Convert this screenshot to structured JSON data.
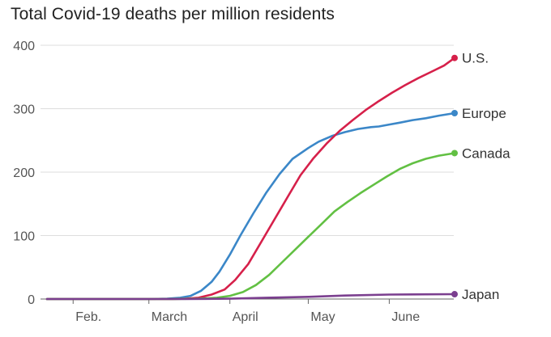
{
  "chart_data": {
    "type": "line",
    "title": "Total Covid-19 deaths per million residents",
    "xlabel": "",
    "ylabel": "",
    "ylim": [
      0,
      400
    ],
    "y_ticks": [
      0,
      100,
      200,
      300,
      400
    ],
    "x_range": [
      "2020-01-22",
      "2020-06-26"
    ],
    "x_ticks": [
      {
        "date": "2020-02-01",
        "label": "Feb."
      },
      {
        "date": "2020-03-01",
        "label": "March"
      },
      {
        "date": "2020-04-01",
        "label": "April"
      },
      {
        "date": "2020-05-01",
        "label": "May"
      },
      {
        "date": "2020-06-01",
        "label": "June"
      }
    ],
    "grid": "horizontal",
    "legend": "end-of-line labels",
    "series": [
      {
        "name": "Europe",
        "color": "#3b87c8",
        "x": [
          "2020-01-22",
          "2020-02-15",
          "2020-03-01",
          "2020-03-08",
          "2020-03-13",
          "2020-03-17",
          "2020-03-21",
          "2020-03-25",
          "2020-03-28",
          "2020-04-01",
          "2020-04-05",
          "2020-04-10",
          "2020-04-15",
          "2020-04-20",
          "2020-04-25",
          "2020-05-01",
          "2020-05-05",
          "2020-05-10",
          "2020-05-15",
          "2020-05-20",
          "2020-05-25",
          "2020-05-28",
          "2020-06-01",
          "2020-06-05",
          "2020-06-10",
          "2020-06-15",
          "2020-06-20",
          "2020-06-26"
        ],
        "values": [
          0,
          0,
          0,
          0.5,
          2,
          5,
          13,
          27,
          43,
          70,
          100,
          135,
          168,
          197,
          221,
          238,
          248,
          257,
          263,
          268,
          271,
          272,
          275,
          278,
          282,
          285,
          289,
          293
        ]
      },
      {
        "name": "U.S.",
        "color": "#d6204a",
        "x": [
          "2020-01-22",
          "2020-03-01",
          "2020-03-10",
          "2020-03-15",
          "2020-03-20",
          "2020-03-25",
          "2020-03-30",
          "2020-04-03",
          "2020-04-08",
          "2020-04-13",
          "2020-04-18",
          "2020-04-23",
          "2020-04-28",
          "2020-05-03",
          "2020-05-08",
          "2020-05-13",
          "2020-05-18",
          "2020-05-23",
          "2020-05-28",
          "2020-06-02",
          "2020-06-07",
          "2020-06-12",
          "2020-06-17",
          "2020-06-22",
          "2020-06-26"
        ],
        "values": [
          0,
          0,
          0,
          0.5,
          2,
          7,
          15,
          30,
          55,
          90,
          125,
          160,
          195,
          222,
          245,
          265,
          282,
          298,
          312,
          325,
          337,
          348,
          358,
          368,
          380
        ]
      },
      {
        "name": "Canada",
        "color": "#62c043",
        "x": [
          "2020-01-22",
          "2020-03-10",
          "2020-03-20",
          "2020-03-27",
          "2020-04-01",
          "2020-04-06",
          "2020-04-11",
          "2020-04-16",
          "2020-04-21",
          "2020-04-26",
          "2020-05-01",
          "2020-05-06",
          "2020-05-11",
          "2020-05-16",
          "2020-05-21",
          "2020-05-26",
          "2020-05-31",
          "2020-06-05",
          "2020-06-10",
          "2020-06-15",
          "2020-06-20",
          "2020-06-26"
        ],
        "values": [
          0,
          0,
          0.5,
          2,
          5,
          11,
          22,
          38,
          58,
          78,
          98,
          118,
          138,
          153,
          167,
          180,
          193,
          205,
          214,
          221,
          226,
          230
        ]
      },
      {
        "name": "Japan",
        "color": "#7b3f8f",
        "x": [
          "2020-01-22",
          "2020-03-15",
          "2020-04-01",
          "2020-04-15",
          "2020-05-01",
          "2020-05-15",
          "2020-06-01",
          "2020-06-15",
          "2020-06-26"
        ],
        "values": [
          0,
          0,
          0.5,
          2,
          3.5,
          5.5,
          7,
          7.4,
          7.6
        ]
      }
    ]
  }
}
